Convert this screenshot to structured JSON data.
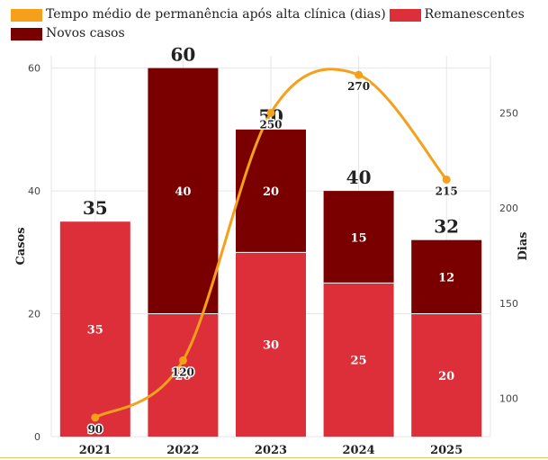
{
  "legend": {
    "line_label": "Tempo médio de permanência após alta clínica (dias)",
    "remanescentes_label": "Remanescentes",
    "novos_label": "Novos casos"
  },
  "colors": {
    "remanescentes": "#dc2f3a",
    "novos": "#7a0000",
    "line": "#f5a01a",
    "grid": "#e6e6e6",
    "text": "#222222"
  },
  "chart_data": {
    "type": "bar",
    "stacked": true,
    "categories": [
      "2021",
      "2022",
      "2023",
      "2024",
      "2025"
    ],
    "series": [
      {
        "name": "Remanescentes",
        "values": [
          35,
          20,
          30,
          25,
          20
        ],
        "axis": "left"
      },
      {
        "name": "Novos casos",
        "values": [
          0,
          40,
          20,
          15,
          12
        ],
        "axis": "left"
      },
      {
        "name": "Tempo médio de permanência após alta clínica (dias)",
        "type": "line",
        "values": [
          90,
          120,
          250,
          270,
          215
        ],
        "axis": "right"
      }
    ],
    "totals": [
      35,
      60,
      50,
      40,
      32
    ],
    "ylabel": "Casos",
    "ylim": [
      0,
      62
    ],
    "yticks": [
      0,
      20,
      40,
      60
    ],
    "y2label": "Dias",
    "y2lim": [
      80,
      280
    ],
    "y2ticks": [
      100,
      150,
      200,
      250
    ],
    "grid": true,
    "legend_position": "top-left"
  }
}
